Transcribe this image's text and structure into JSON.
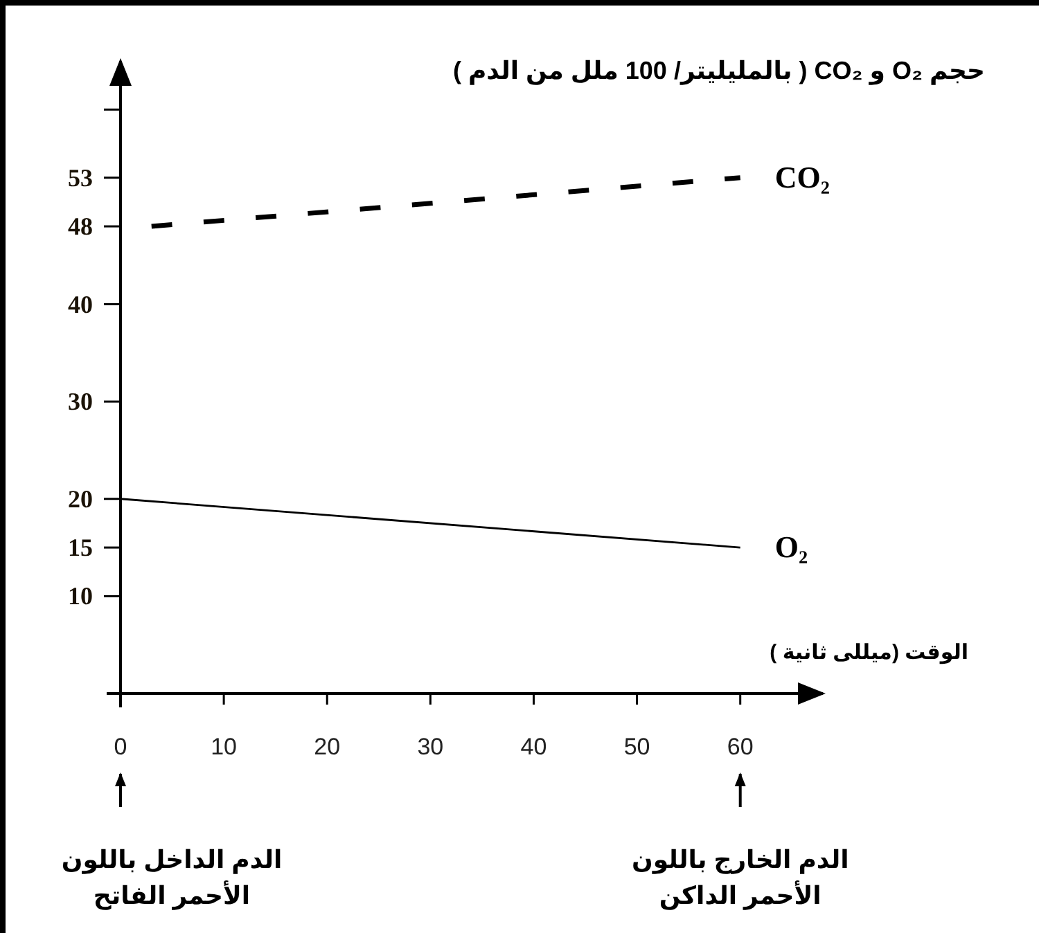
{
  "chart_data": {
    "type": "line",
    "ylabel": "حجم O₂ و CO₂ ( بالمليليتر/ 100 ملل من الدم )",
    "xlabel": "الوقت (ميللى ثانية )",
    "xlim": [
      0,
      68
    ],
    "xticks": [
      0,
      10,
      20,
      30,
      40,
      50,
      60
    ],
    "ylim": [
      0,
      65
    ],
    "yticks": [
      10,
      15,
      20,
      30,
      40,
      48,
      53,
      {
        "value": 60,
        "label": null
      }
    ],
    "series": [
      {
        "name": "CO₂",
        "color": "#000000",
        "line_style": "dashed",
        "x": [
          3,
          60
        ],
        "values": [
          48,
          53
        ]
      },
      {
        "name": "O₂",
        "color": "#000000",
        "line_style": "solid",
        "x": [
          0,
          60
        ],
        "values": [
          20,
          15
        ]
      }
    ],
    "annotations": [
      "الدم الداخل باللون\nالأحمر الفاتح",
      "الدم الخارج باللون\nالأحمر الداكن"
    ]
  }
}
